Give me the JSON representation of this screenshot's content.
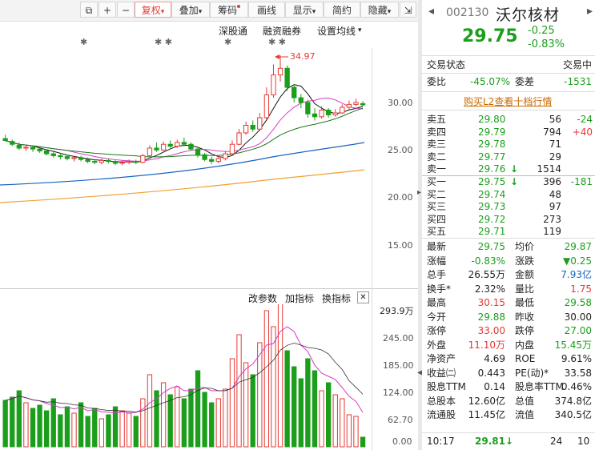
{
  "toolbar": {
    "buttons": [
      "复权",
      "叠加",
      "筹码",
      "画线",
      "显示",
      "简约",
      "隐藏"
    ],
    "icons": [
      "copy-icon",
      "plus-icon",
      "minus-icon",
      "dropdown-icon",
      "collapse-icon"
    ]
  },
  "subbar": {
    "items": [
      "深股通",
      "融资融券",
      "设置均线"
    ]
  },
  "price_chart": {
    "max_label": "34.97",
    "y_ticks": [
      "30.00",
      "25.00",
      "20.00",
      "15.00"
    ],
    "colors": {
      "up": "#e53935",
      "down": "#1b9e1b",
      "ma5": "#111111",
      "ma10": "#d63cc6",
      "ma20": "#1a7a1a",
      "ma30": "#1565c0",
      "ma60": "#f0a030"
    }
  },
  "vol_chart": {
    "toolbar": [
      "改参数",
      "加指标",
      "换指标"
    ],
    "close_label": "✕",
    "y_ticks": [
      "293.9万",
      "245.00",
      "185.00",
      "124.00",
      "62.70",
      "0.00"
    ]
  },
  "stock": {
    "code": "002130",
    "name": "沃尔核材",
    "price": "29.75",
    "change": "-0.25",
    "change_pct": "-0.83%"
  },
  "status": {
    "label": "交易状态",
    "value": "交易中"
  },
  "weibi": {
    "label": "委比",
    "value": "-45.07%",
    "diff_label": "委差",
    "diff_value": "-1531"
  },
  "l2_link": "购买L2查看十档行情",
  "sell": [
    {
      "label": "卖五",
      "price": "29.80",
      "vol": "56",
      "chg": "-24"
    },
    {
      "label": "卖四",
      "price": "29.79",
      "vol": "794",
      "chg": "+40"
    },
    {
      "label": "卖三",
      "price": "29.78",
      "vol": "71",
      "chg": ""
    },
    {
      "label": "卖二",
      "price": "29.77",
      "vol": "29",
      "chg": ""
    },
    {
      "label": "卖一",
      "price": "29.76",
      "arrow": "↓",
      "vol": "1514",
      "chg": ""
    }
  ],
  "buy": [
    {
      "label": "买一",
      "price": "29.75",
      "arrow": "↓",
      "vol": "396",
      "chg": "-181"
    },
    {
      "label": "买二",
      "price": "29.74",
      "vol": "48",
      "chg": ""
    },
    {
      "label": "买三",
      "price": "29.73",
      "vol": "97",
      "chg": ""
    },
    {
      "label": "买四",
      "price": "29.72",
      "vol": "273",
      "chg": ""
    },
    {
      "label": "买五",
      "price": "29.71",
      "vol": "119",
      "chg": ""
    }
  ],
  "stats": [
    {
      "l1": "最新",
      "v1": "29.75",
      "c1": "green",
      "l2": "均价",
      "v2": "29.87",
      "c2": "green"
    },
    {
      "l1": "涨幅",
      "v1": "-0.83%",
      "c1": "green",
      "l2": "涨跌",
      "v2": "▼0.25",
      "c2": "green"
    },
    {
      "l1": "总手",
      "v1": "26.55万",
      "c1": "black",
      "l2": "金额",
      "v2": "7.93亿",
      "c2": "blue"
    },
    {
      "l1": "换手*",
      "v1": "2.32%",
      "c1": "black",
      "l2": "量比",
      "v2": "1.75",
      "c2": "red"
    },
    {
      "l1": "最高",
      "v1": "30.15",
      "c1": "red",
      "l2": "最低",
      "v2": "29.58",
      "c2": "green"
    },
    {
      "l1": "今开",
      "v1": "29.88",
      "c1": "green",
      "l2": "昨收",
      "v2": "30.00",
      "c2": "black"
    },
    {
      "l1": "涨停",
      "v1": "33.00",
      "c1": "red",
      "l2": "跌停",
      "v2": "27.00",
      "c2": "green"
    },
    {
      "l1": "外盘",
      "v1": "11.10万",
      "c1": "red",
      "l2": "内盘",
      "v2": "15.45万",
      "c2": "green"
    },
    {
      "l1": "净资产",
      "v1": "4.69",
      "c1": "black",
      "l2": "ROE",
      "v2": "9.61%",
      "c2": "black"
    },
    {
      "l1": "收益㈡",
      "v1": "0.443",
      "c1": "black",
      "l2": "PE(动)*",
      "v2": "33.58",
      "c2": "black"
    },
    {
      "l1": "股息TTM",
      "v1": "0.14",
      "c1": "black",
      "l2": "股息率TTM",
      "v2": "0.46%",
      "c2": "black"
    },
    {
      "l1": "总股本",
      "v1": "12.60亿",
      "c1": "black",
      "l2": "总值",
      "v2": "374.8亿",
      "c2": "black"
    },
    {
      "l1": "流通股",
      "v1": "11.45亿",
      "c1": "black",
      "l2": "流值",
      "v2": "340.5亿",
      "c2": "black"
    }
  ],
  "tick": {
    "time": "10:17",
    "price": "29.81",
    "arrow": "↓",
    "vol": "24",
    "count": "10"
  }
}
